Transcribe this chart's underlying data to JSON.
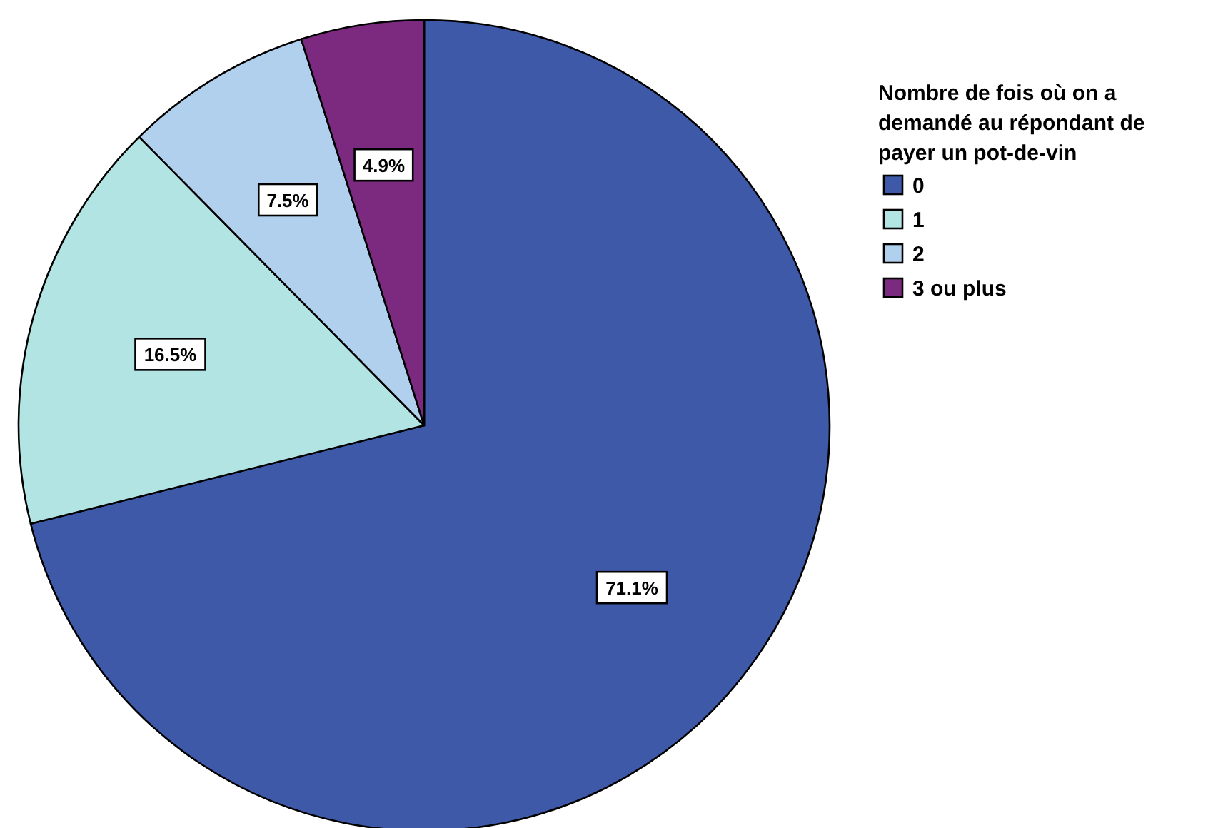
{
  "chart_data": {
    "type": "pie",
    "legend_title": "Nombre de fois où on a demandé au répondant de payer un pot-de-vin",
    "categories": [
      "0",
      "1",
      "2",
      "3 ou plus"
    ],
    "values": [
      71.1,
      16.5,
      7.5,
      4.9
    ],
    "colors": [
      "#3f59a9",
      "#b3e4e4",
      "#b0d0ee",
      "#7c2a80"
    ],
    "value_labels": [
      "71.1%",
      "16.5%",
      "7.5%",
      "4.9%"
    ],
    "legend": "right"
  }
}
